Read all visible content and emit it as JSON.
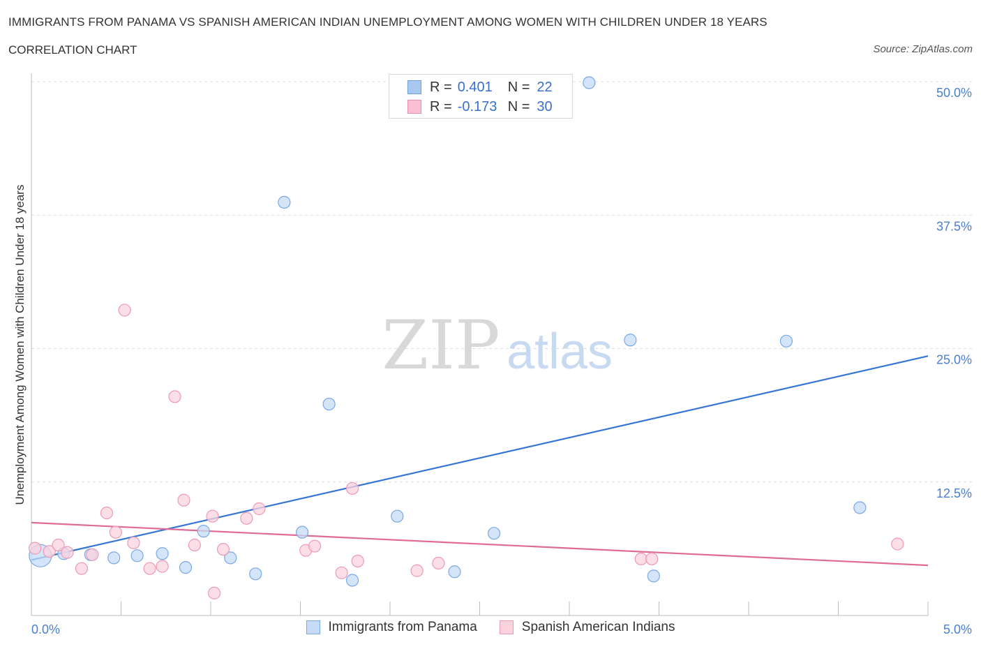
{
  "title": "IMMIGRANTS FROM PANAMA VS SPANISH AMERICAN INDIAN UNEMPLOYMENT AMONG WOMEN WITH CHILDREN UNDER 18 YEARS",
  "subtitle": "CORRELATION CHART",
  "source": "Source: ZipAtlas.com",
  "watermark": {
    "zip": "ZIP",
    "atlas": "atlas"
  },
  "legend": {
    "rows": [
      {
        "r_label": "R =",
        "r_value": "0.401",
        "n_label": "N =",
        "n_value": "22",
        "color": "#a8c8f0",
        "border": "#6fa0e0"
      },
      {
        "r_label": "R =",
        "r_value": "-0.173",
        "n_label": "N =",
        "n_value": "30",
        "color": "#f8c0d0",
        "border": "#e890a8"
      }
    ]
  },
  "bottom_legend": {
    "items": [
      {
        "label": "Immigrants from Panama",
        "color": "#c5dbf7",
        "border": "#7aa8e6"
      },
      {
        "label": "Spanish American Indians",
        "color": "#fbd3df",
        "border": "#eb9ab4"
      }
    ]
  },
  "chart_data": {
    "type": "scatter",
    "title": "IMMIGRANTS FROM PANAMA VS SPANISH AMERICAN INDIAN UNEMPLOYMENT AMONG WOMEN WITH CHILDREN UNDER 18 YEARS",
    "xlabel": "",
    "ylabel": "Unemployment Among Women with Children Under 18 years",
    "xlim": [
      0,
      5
    ],
    "ylim": [
      0,
      50
    ],
    "x_tick_labels": [
      "0.0%",
      "5.0%"
    ],
    "y_ticks": [
      12.5,
      25,
      37.5,
      50
    ],
    "y_tick_labels": [
      "12.5%",
      "25.0%",
      "37.5%",
      "50.0%"
    ],
    "grid": true,
    "series": [
      {
        "name": "Immigrants from Panama",
        "color": "#7aa8e6",
        "fill": "#c5dbf7",
        "trend_color": "#3575d3",
        "trend": [
          [
            0,
            5.2
          ],
          [
            5,
            24.3
          ]
        ],
        "points": [
          [
            0.05,
            5.6,
            "large"
          ],
          [
            0.18,
            5.8
          ],
          [
            0.33,
            5.7
          ],
          [
            0.46,
            5.4
          ],
          [
            0.59,
            5.6
          ],
          [
            0.73,
            5.8
          ],
          [
            0.86,
            4.5
          ],
          [
            0.96,
            7.9
          ],
          [
            1.11,
            5.4
          ],
          [
            1.25,
            3.9
          ],
          [
            1.41,
            38.7
          ],
          [
            1.51,
            7.8
          ],
          [
            1.66,
            19.8
          ],
          [
            1.79,
            3.3
          ],
          [
            2.04,
            9.3
          ],
          [
            2.36,
            4.1
          ],
          [
            2.58,
            7.7
          ],
          [
            3.11,
            49.9
          ],
          [
            3.34,
            25.8
          ],
          [
            3.47,
            3.7
          ],
          [
            4.21,
            25.7
          ],
          [
            4.62,
            10.1
          ]
        ]
      },
      {
        "name": "Spanish American Indians",
        "color": "#eb9ab4",
        "fill": "#fbd3df",
        "trend_color": "#e06c95",
        "trend": [
          [
            0,
            8.7
          ],
          [
            5,
            4.7
          ]
        ],
        "points": [
          [
            0.02,
            6.3
          ],
          [
            0.1,
            6.0
          ],
          [
            0.15,
            6.6
          ],
          [
            0.2,
            5.9
          ],
          [
            0.28,
            4.4
          ],
          [
            0.34,
            5.7
          ],
          [
            0.42,
            9.6
          ],
          [
            0.47,
            7.8
          ],
          [
            0.52,
            28.6
          ],
          [
            0.57,
            6.8
          ],
          [
            0.66,
            4.4
          ],
          [
            0.73,
            4.6
          ],
          [
            0.8,
            20.5
          ],
          [
            0.85,
            10.8
          ],
          [
            0.91,
            6.6
          ],
          [
            1.01,
            9.3
          ],
          [
            1.02,
            2.1
          ],
          [
            1.07,
            6.2
          ],
          [
            1.2,
            9.1
          ],
          [
            1.27,
            10.0
          ],
          [
            1.53,
            6.1
          ],
          [
            1.58,
            6.5
          ],
          [
            1.73,
            4.0
          ],
          [
            1.79,
            11.9
          ],
          [
            1.82,
            5.1
          ],
          [
            2.15,
            4.2
          ],
          [
            2.27,
            4.9
          ],
          [
            3.4,
            5.3
          ],
          [
            3.46,
            5.3
          ],
          [
            4.83,
            6.7
          ]
        ]
      }
    ]
  }
}
